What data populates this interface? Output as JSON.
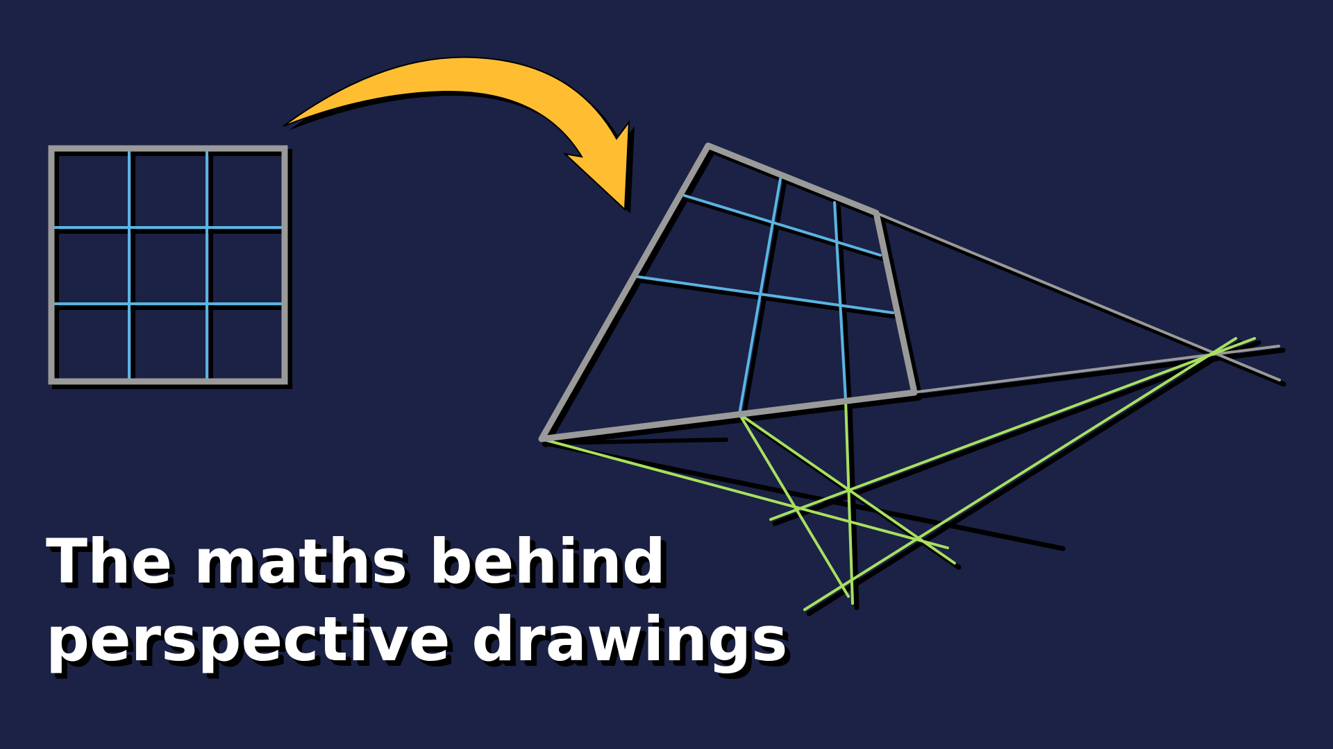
{
  "title": {
    "line1": "The maths behind",
    "line2": "perspective drawings"
  },
  "colors": {
    "background": "#1b2245",
    "frame": "#9a9a9a",
    "grid_lines": "#5bb4e0",
    "construction_lines": "#a8e05f",
    "arrow": "#ffbe32",
    "shadow": "#000000",
    "title_text": "#ffffff"
  },
  "icons": {
    "arrow": "curved-arrow-icon"
  }
}
